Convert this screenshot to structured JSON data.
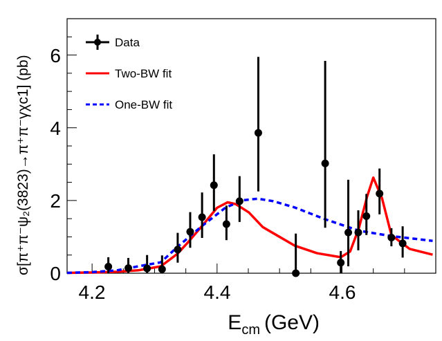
{
  "chart_data": {
    "type": "scatter",
    "xlabel": "E",
    "xlabel_sub": "cm",
    "xlabel_unit": "(GeV)",
    "ylabel": "σ[π⁺π⁻ψ₂(3823)→π⁺π⁻γχc1] (pb)",
    "xlim": [
      4.16,
      4.75
    ],
    "ylim": [
      0,
      7
    ],
    "x_ticks": [
      4.2,
      4.4,
      4.6
    ],
    "x_tick_labels": [
      "4.2",
      "4.4",
      "4.6"
    ],
    "y_ticks": [
      0,
      2,
      4,
      6
    ],
    "y_tick_labels": [
      "0",
      "2",
      "4",
      "6"
    ],
    "grid": false,
    "legend_position": "top-left",
    "legend": [
      {
        "label": "Data",
        "style": "points-with-errors",
        "color": "#000000"
      },
      {
        "label": "Two-BW fit",
        "style": "solid",
        "color": "#ff0000"
      },
      {
        "label": "One-BW fit",
        "style": "dashed",
        "color": "#0000ff"
      }
    ],
    "data_points": [
      {
        "x": 4.226,
        "y": 0.18,
        "lo": 0.0,
        "hi": 0.44
      },
      {
        "x": 4.258,
        "y": 0.14,
        "lo": 0.0,
        "hi": 0.42
      },
      {
        "x": 4.288,
        "y": 0.13,
        "lo": 0.0,
        "hi": 0.5
      },
      {
        "x": 4.312,
        "y": 0.11,
        "lo": 0.0,
        "hi": 0.49
      },
      {
        "x": 4.337,
        "y": 0.65,
        "lo": 0.29,
        "hi": 1.11
      },
      {
        "x": 4.357,
        "y": 1.14,
        "lo": 0.7,
        "hi": 1.68
      },
      {
        "x": 4.376,
        "y": 1.54,
        "lo": 0.97,
        "hi": 2.22
      },
      {
        "x": 4.395,
        "y": 2.42,
        "lo": 1.71,
        "hi": 3.27
      },
      {
        "x": 4.415,
        "y": 1.35,
        "lo": 0.91,
        "hi": 1.86
      },
      {
        "x": 4.436,
        "y": 1.98,
        "lo": 1.41,
        "hi": 2.67
      },
      {
        "x": 4.466,
        "y": 3.86,
        "lo": 2.25,
        "hi": 5.95
      },
      {
        "x": 4.526,
        "y": 0.0,
        "lo": 0.0,
        "hi": 1.09
      },
      {
        "x": 4.573,
        "y": 3.02,
        "lo": 1.25,
        "hi": 5.84
      },
      {
        "x": 4.598,
        "y": 0.29,
        "lo": 0.0,
        "hi": 0.61
      },
      {
        "x": 4.61,
        "y": 1.12,
        "lo": 0.19,
        "hi": 2.57
      },
      {
        "x": 4.626,
        "y": 1.12,
        "lo": 0.63,
        "hi": 1.73
      },
      {
        "x": 4.639,
        "y": 1.57,
        "lo": 1.05,
        "hi": 2.18
      },
      {
        "x": 4.66,
        "y": 2.19,
        "lo": 1.62,
        "hi": 2.88
      },
      {
        "x": 4.679,
        "y": 0.98,
        "lo": 0.74,
        "hi": 1.24
      },
      {
        "x": 4.697,
        "y": 0.82,
        "lo": 0.43,
        "hi": 1.29
      }
    ],
    "series": [
      {
        "name": "Two-BW fit",
        "color": "#ff0000",
        "x": [
          4.16,
          4.2,
          4.24,
          4.274,
          4.31,
          4.337,
          4.354,
          4.376,
          4.4,
          4.417,
          4.43,
          4.451,
          4.473,
          4.5,
          4.524,
          4.56,
          4.598,
          4.613,
          4.627,
          4.64,
          4.65,
          4.664,
          4.679,
          4.708,
          4.745
        ],
        "y": [
          0.01,
          0.02,
          0.04,
          0.08,
          0.19,
          0.54,
          0.86,
          1.3,
          1.8,
          1.95,
          1.9,
          1.67,
          1.27,
          1.0,
          0.76,
          0.55,
          0.44,
          0.6,
          1.24,
          2.1,
          2.63,
          2.06,
          1.05,
          0.67,
          0.51
        ]
      },
      {
        "name": "One-BW fit",
        "color": "#0000ff",
        "x": [
          4.16,
          4.2,
          4.24,
          4.274,
          4.31,
          4.337,
          4.376,
          4.414,
          4.443,
          4.465,
          4.49,
          4.524,
          4.572,
          4.627,
          4.679,
          4.745
        ],
        "y": [
          0.01,
          0.03,
          0.08,
          0.19,
          0.3,
          0.73,
          1.3,
          1.81,
          2.01,
          2.05,
          1.98,
          1.81,
          1.49,
          1.17,
          1.02,
          0.89
        ]
      }
    ]
  }
}
